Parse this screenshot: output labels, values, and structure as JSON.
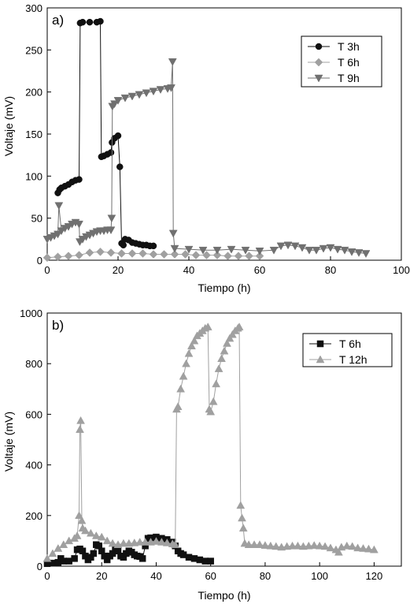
{
  "chart_data": [
    {
      "type": "line",
      "panel_label": "a)",
      "xlabel": "Tiempo (h)",
      "ylabel": "Voltaje (mV)",
      "xlim": [
        0,
        100
      ],
      "ylim": [
        0,
        300
      ],
      "xticks": [
        0,
        20,
        40,
        60,
        80,
        100
      ],
      "yticks": [
        0,
        50,
        100,
        150,
        200,
        250,
        300
      ],
      "legend_position": "top-right",
      "series": [
        {
          "name": "T 3h",
          "marker": "circle",
          "color": "#111111",
          "points": [
            [
              3,
              80
            ],
            [
              3.5,
              84
            ],
            [
              4,
              86
            ],
            [
              5,
              88
            ],
            [
              6,
              90
            ],
            [
              7,
              93
            ],
            [
              8,
              95
            ],
            [
              9,
              96
            ],
            [
              9.3,
              282
            ],
            [
              10,
              283
            ],
            [
              12,
              283
            ],
            [
              14,
              283
            ],
            [
              15,
              284
            ],
            [
              15.3,
              123
            ],
            [
              16,
              124
            ],
            [
              17,
              126
            ],
            [
              18,
              128
            ],
            [
              18.3,
              140
            ],
            [
              19,
              145
            ],
            [
              20,
              148
            ],
            [
              20.5,
              111
            ],
            [
              21,
              20
            ],
            [
              21.5,
              18
            ],
            [
              22,
              25
            ],
            [
              23,
              24
            ],
            [
              24,
              21
            ],
            [
              25,
              20
            ],
            [
              26,
              19
            ],
            [
              27,
              18
            ],
            [
              28,
              18
            ],
            [
              29,
              17
            ],
            [
              30,
              17
            ]
          ]
        },
        {
          "name": "T 6h",
          "marker": "diamond",
          "color": "#a0a0a0",
          "points": [
            [
              0,
              3
            ],
            [
              3,
              4
            ],
            [
              6,
              5
            ],
            [
              9,
              6
            ],
            [
              12,
              9
            ],
            [
              15,
              10
            ],
            [
              18,
              9
            ],
            [
              21,
              8
            ],
            [
              24,
              8
            ],
            [
              27,
              8
            ],
            [
              30,
              7
            ],
            [
              33,
              7
            ],
            [
              36,
              7
            ],
            [
              39,
              7
            ],
            [
              42,
              6
            ],
            [
              45,
              6
            ],
            [
              48,
              6
            ],
            [
              51,
              5
            ],
            [
              54,
              5
            ],
            [
              57,
              5
            ],
            [
              60,
              5
            ]
          ]
        },
        {
          "name": "T 9h",
          "marker": "triangle-down",
          "color": "#707070",
          "points": [
            [
              0,
              25
            ],
            [
              1,
              27
            ],
            [
              2,
              29
            ],
            [
              3,
              31
            ],
            [
              3.3,
              65
            ],
            [
              4,
              35
            ],
            [
              5,
              38
            ],
            [
              6,
              40
            ],
            [
              7,
              43
            ],
            [
              8,
              45
            ],
            [
              9,
              43
            ],
            [
              9.2,
              22
            ],
            [
              10,
              25
            ],
            [
              11,
              28
            ],
            [
              12,
              30
            ],
            [
              13,
              32
            ],
            [
              14,
              34
            ],
            [
              15,
              35
            ],
            [
              16,
              35
            ],
            [
              17,
              36
            ],
            [
              18,
              36
            ],
            [
              18.2,
              50
            ],
            [
              18.4,
              183
            ],
            [
              19,
              186
            ],
            [
              20,
              190
            ],
            [
              22,
              193
            ],
            [
              24,
              195
            ],
            [
              26,
              197
            ],
            [
              28,
              199
            ],
            [
              30,
              201
            ],
            [
              32,
              203
            ],
            [
              34,
              204
            ],
            [
              35,
              205
            ],
            [
              35.4,
              236
            ],
            [
              35.6,
              32
            ],
            [
              36,
              14
            ],
            [
              40,
              13
            ],
            [
              44,
              12
            ],
            [
              48,
              12
            ],
            [
              52,
              13
            ],
            [
              56,
              12
            ],
            [
              60,
              11
            ],
            [
              64,
              12
            ],
            [
              66,
              17
            ],
            [
              68,
              18
            ],
            [
              70,
              17
            ],
            [
              72,
              15
            ],
            [
              74,
              12
            ],
            [
              76,
              12
            ],
            [
              78,
              14
            ],
            [
              80,
              15
            ],
            [
              82,
              13
            ],
            [
              84,
              12
            ],
            [
              86,
              10
            ],
            [
              88,
              9
            ],
            [
              90,
              8
            ]
          ]
        }
      ]
    },
    {
      "type": "line",
      "panel_label": "b)",
      "xlabel": "Tiempo (h)",
      "ylabel": "Voltaje (mV)",
      "xlim": [
        0,
        130
      ],
      "ylim": [
        0,
        1000
      ],
      "xticks": [
        0,
        20,
        40,
        60,
        80,
        100,
        120
      ],
      "yticks": [
        0,
        200,
        400,
        600,
        800,
        1000
      ],
      "legend_position": "top-right",
      "series": [
        {
          "name": "T 6h",
          "marker": "square",
          "color": "#111111",
          "points": [
            [
              0,
              10
            ],
            [
              2,
              12
            ],
            [
              4,
              15
            ],
            [
              5,
              30
            ],
            [
              6,
              20
            ],
            [
              8,
              20
            ],
            [
              10,
              30
            ],
            [
              11,
              65
            ],
            [
              12,
              68
            ],
            [
              13,
              60
            ],
            [
              14,
              40
            ],
            [
              15,
              25
            ],
            [
              16,
              35
            ],
            [
              17,
              50
            ],
            [
              18,
              85
            ],
            [
              19,
              80
            ],
            [
              20,
              60
            ],
            [
              21,
              40
            ],
            [
              22,
              25
            ],
            [
              23,
              40
            ],
            [
              24,
              50
            ],
            [
              25,
              70
            ],
            [
              26,
              60
            ],
            [
              27,
              40
            ],
            [
              28,
              35
            ],
            [
              29,
              50
            ],
            [
              30,
              60
            ],
            [
              31,
              55
            ],
            [
              32,
              45
            ],
            [
              33,
              40
            ],
            [
              34,
              38
            ],
            [
              35,
              30
            ],
            [
              36,
              80
            ],
            [
              37,
              110
            ],
            [
              38,
              112
            ],
            [
              40,
              115
            ],
            [
              42,
              110
            ],
            [
              44,
              105
            ],
            [
              46,
              95
            ],
            [
              47,
              80
            ],
            [
              48,
              60
            ],
            [
              49,
              50
            ],
            [
              50,
              45
            ],
            [
              52,
              35
            ],
            [
              54,
              30
            ],
            [
              56,
              25
            ],
            [
              58,
              20
            ],
            [
              60,
              20
            ]
          ]
        },
        {
          "name": "T 12h",
          "marker": "triangle-up",
          "color": "#a0a0a0",
          "points": [
            [
              0,
              30
            ],
            [
              2,
              50
            ],
            [
              4,
              70
            ],
            [
              6,
              85
            ],
            [
              8,
              100
            ],
            [
              10,
              110
            ],
            [
              11,
              120
            ],
            [
              11.7,
              200
            ],
            [
              12,
              540
            ],
            [
              12.3,
              575
            ],
            [
              12.7,
              180
            ],
            [
              13,
              150
            ],
            [
              14,
              140
            ],
            [
              16,
              130
            ],
            [
              18,
              120
            ],
            [
              20,
              115
            ],
            [
              22,
              100
            ],
            [
              24,
              90
            ],
            [
              26,
              85
            ],
            [
              28,
              90
            ],
            [
              30,
              90
            ],
            [
              32,
              92
            ],
            [
              34,
              95
            ],
            [
              36,
              95
            ],
            [
              38,
              95
            ],
            [
              40,
              98
            ],
            [
              42,
              95
            ],
            [
              44,
              92
            ],
            [
              46,
              88
            ],
            [
              47,
              85
            ],
            [
              47.5,
              620
            ],
            [
              48,
              630
            ],
            [
              49,
              700
            ],
            [
              50,
              750
            ],
            [
              51,
              800
            ],
            [
              52,
              840
            ],
            [
              53,
              870
            ],
            [
              54,
              890
            ],
            [
              55,
              910
            ],
            [
              56,
              920
            ],
            [
              57,
              930
            ],
            [
              58,
              940
            ],
            [
              59,
              945
            ],
            [
              59.5,
              620
            ],
            [
              60,
              610
            ],
            [
              61,
              650
            ],
            [
              62,
              720
            ],
            [
              63,
              780
            ],
            [
              64,
              820
            ],
            [
              65,
              850
            ],
            [
              66,
              880
            ],
            [
              67,
              900
            ],
            [
              68,
              915
            ],
            [
              69,
              930
            ],
            [
              70,
              940
            ],
            [
              70.5,
              945
            ],
            [
              71,
              240
            ],
            [
              71.5,
              190
            ],
            [
              72,
              150
            ],
            [
              72.5,
              90
            ],
            [
              74,
              85
            ],
            [
              76,
              85
            ],
            [
              78,
              85
            ],
            [
              80,
              82
            ],
            [
              82,
              80
            ],
            [
              84,
              78
            ],
            [
              86,
              75
            ],
            [
              88,
              78
            ],
            [
              90,
              80
            ],
            [
              92,
              80
            ],
            [
              94,
              78
            ],
            [
              96,
              80
            ],
            [
              98,
              82
            ],
            [
              100,
              80
            ],
            [
              102,
              78
            ],
            [
              104,
              72
            ],
            [
              106,
              65
            ],
            [
              107,
              55
            ],
            [
              108,
              75
            ],
            [
              110,
              80
            ],
            [
              112,
              78
            ],
            [
              114,
              72
            ],
            [
              116,
              70
            ],
            [
              118,
              68
            ],
            [
              120,
              65
            ]
          ]
        }
      ]
    }
  ]
}
